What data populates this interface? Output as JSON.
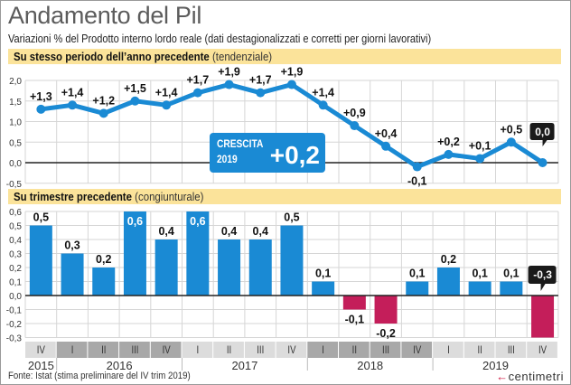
{
  "header": {
    "title": "Andamento del Pil",
    "subtitle": "Variazioni % del Prodotto interno lordo reale (dati destagionalizzati e corretti per giorni lavorativi)"
  },
  "sections": {
    "top": {
      "bold": "Su stesso periodo dell’anno precedente",
      "light": "(tendenziale)"
    },
    "bottom": {
      "bold": "Su trimestre precedente",
      "light": "(congiunturale)"
    }
  },
  "callout": {
    "label_line1": "CRESCITA",
    "label_line2": "2019",
    "value": "+0,2"
  },
  "footer": {
    "source": "Fonte: Istat (stima preliminare del IV trim 2019)",
    "logo_mark": "←",
    "logo_text": "centimetri"
  },
  "colors": {
    "line_blue": "#1a8ad4",
    "bar_blue": "#1a8ad4",
    "bar_negative": "#c41e5a",
    "band_yellow": "#fbe39a",
    "callout_blue": "#1a8ad4",
    "tag_black": "#1a1a1a"
  },
  "chart_data": [
    {
      "type": "line",
      "title": "Su stesso periodo dell’anno precedente (tendenziale)",
      "categories": [
        "IV 2015",
        "I 2016",
        "II 2016",
        "III 2016",
        "IV 2016",
        "I 2017",
        "II 2017",
        "III 2017",
        "IV 2017",
        "I 2018",
        "II 2018",
        "III 2018",
        "IV 2018",
        "I 2019",
        "II 2019",
        "III 2019",
        "IV 2019"
      ],
      "values": [
        1.3,
        1.4,
        1.2,
        1.5,
        1.4,
        1.7,
        1.9,
        1.7,
        1.9,
        1.4,
        0.9,
        0.4,
        -0.1,
        0.2,
        0.1,
        0.5,
        0.0
      ],
      "labels": [
        "+1,3",
        "+1,4",
        "+1,2",
        "+1,5",
        "+1,4",
        "+1,7",
        "+1,9",
        "+1,7",
        "+1,9",
        "+1,4",
        "+0,9",
        "+0,4",
        "-0,1",
        "+0,2",
        "+0,1",
        "+0,5",
        "0,0"
      ],
      "highlight_last": true,
      "yticks": [
        "2,0",
        "1,5",
        "1,0",
        "0,5",
        "0,0",
        "-0,5"
      ],
      "ytick_values": [
        2.0,
        1.5,
        1.0,
        0.5,
        0.0,
        -0.5
      ],
      "ylim": [
        -0.5,
        2.0
      ],
      "grid": true
    },
    {
      "type": "bar",
      "title": "Su trimestre precedente (congiunturale)",
      "categories": [
        "IV 2015",
        "I 2016",
        "II 2016",
        "III 2016",
        "IV 2016",
        "I 2017",
        "II 2017",
        "III 2017",
        "IV 2017",
        "I 2018",
        "II 2018",
        "III 2018",
        "IV 2018",
        "I 2019",
        "II 2019",
        "III 2019",
        "IV 2019"
      ],
      "values": [
        0.5,
        0.3,
        0.2,
        0.6,
        0.4,
        0.6,
        0.4,
        0.4,
        0.5,
        0.1,
        -0.1,
        -0.2,
        0.1,
        0.2,
        0.1,
        0.1,
        -0.3
      ],
      "labels": [
        "0,5",
        "0,3",
        "0,2",
        "0,6",
        "0,4",
        "0,6",
        "0,4",
        "0,4",
        "0,5",
        "0,1",
        "-0,1",
        "-0,2",
        "0,1",
        "0,2",
        "0,1",
        "0,1",
        "-0,3"
      ],
      "highlight_last": true,
      "yticks": [
        "0,6",
        "0,5",
        "0,4",
        "0,3",
        "0,2",
        "0,1",
        "0,0",
        "-0,1",
        "-0,2",
        "-0,3"
      ],
      "ytick_values": [
        0.6,
        0.5,
        0.4,
        0.3,
        0.2,
        0.1,
        0.0,
        -0.1,
        -0.2,
        -0.3
      ],
      "ylim": [
        -0.3,
        0.6
      ],
      "grid": true
    }
  ],
  "x_axis": {
    "quarters": [
      "IV",
      "I",
      "II",
      "III",
      "IV",
      "I",
      "II",
      "III",
      "IV",
      "I",
      "II",
      "III",
      "IV",
      "I",
      "II",
      "III",
      "IV"
    ],
    "years": [
      {
        "label": "2015",
        "count": 1,
        "shade": "light"
      },
      {
        "label": "2016",
        "count": 4,
        "shade": "dark"
      },
      {
        "label": "2017",
        "count": 4,
        "shade": "light"
      },
      {
        "label": "2018",
        "count": 4,
        "shade": "dark"
      },
      {
        "label": "2019",
        "count": 4,
        "shade": "light"
      }
    ]
  }
}
